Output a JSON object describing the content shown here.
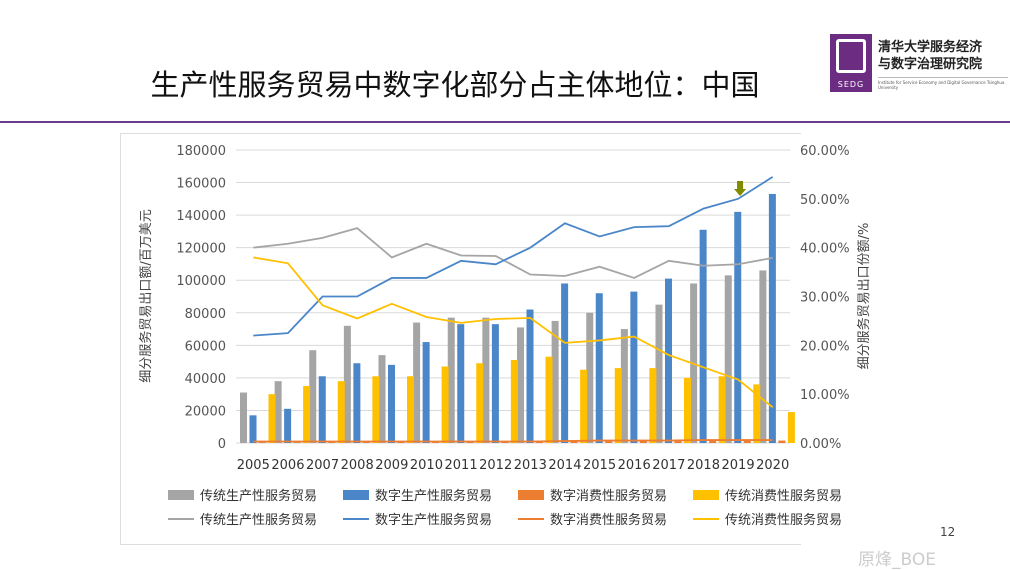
{
  "slide": {
    "title": "生产性服务贸易中数字化部分占主体地位：中国",
    "page": "12",
    "watermark": "原烽_BOE"
  },
  "logo": {
    "text": "SEDG",
    "org_line1": "清华大学服务经济",
    "org_line2": "与数字治理研究院",
    "org_en": "Institute for Service Economy and Digital Governance Tsinghua University"
  },
  "chart_data": {
    "type": "bar+line",
    "categories": [
      "2005",
      "2006",
      "2007",
      "2008",
      "2009",
      "2010",
      "2011",
      "2012",
      "2013",
      "2014",
      "2015",
      "2016",
      "2017",
      "2018",
      "2019",
      "2020"
    ],
    "ylabel": "细分服务贸易出口额/百万美元",
    "y2label": "细分服务贸易出口份额/%",
    "ylim": [
      0,
      180000
    ],
    "y2lim": [
      0,
      60
    ],
    "yticks": [
      "0",
      "20000",
      "40000",
      "60000",
      "80000",
      "100000",
      "120000",
      "140000",
      "160000",
      "180000"
    ],
    "y2ticks": [
      "0.00%",
      "10.00%",
      "20.00%",
      "30.00%",
      "40.00%",
      "50.00%",
      "60.00%"
    ],
    "bar_series": [
      {
        "name": "传统生产性服务贸易",
        "color": "#a5a5a5",
        "values": [
          31000,
          38000,
          57000,
          72000,
          54000,
          74000,
          77000,
          77000,
          71000,
          75000,
          80000,
          70000,
          85000,
          98000,
          103000,
          106000
        ]
      },
      {
        "name": "数字生产性服务贸易",
        "color": "#4a86c8",
        "values": [
          17000,
          21000,
          41000,
          49000,
          48000,
          62000,
          73000,
          73000,
          82000,
          98000,
          92000,
          93000,
          101000,
          131000,
          142000,
          153000
        ]
      },
      {
        "name": "数字消费性服务贸易",
        "color": "#ed7d31",
        "values": [
          500,
          500,
          600,
          700,
          700,
          800,
          800,
          800,
          900,
          1000,
          1100,
          1100,
          1200,
          1400,
          1500,
          1500
        ]
      },
      {
        "name": "传统消费性服务贸易",
        "color": "#ffc000",
        "values": [
          30000,
          35000,
          38000,
          41000,
          41000,
          47000,
          49000,
          51000,
          53000,
          45000,
          46000,
          46000,
          40000,
          41000,
          36000,
          19000
        ]
      }
    ],
    "line_series": [
      {
        "name": "传统生产性服务贸易",
        "color": "#a5a5a5",
        "values": [
          40,
          40.8,
          42,
          44,
          38,
          40.8,
          38.4,
          38.3,
          34.5,
          34.2,
          36.1,
          33.8,
          37.3,
          36.3,
          36.6,
          37.9
        ]
      },
      {
        "name": "数字生产性服务贸易",
        "color": "#4a86c8",
        "values": [
          22,
          22.5,
          30,
          30,
          33.8,
          33.8,
          37.3,
          36.6,
          40,
          45,
          42.3,
          44.2,
          44.4,
          48,
          50,
          54.5
        ]
      },
      {
        "name": "数字消费性服务贸易",
        "color": "#ed7d31",
        "values": [
          0.3,
          0.3,
          0.3,
          0.3,
          0.3,
          0.3,
          0.3,
          0.3,
          0.3,
          0.4,
          0.5,
          0.5,
          0.5,
          0.6,
          0.6,
          0.6
        ]
      },
      {
        "name": "传统消费性服务贸易",
        "color": "#ffc000",
        "values": [
          38,
          36.8,
          28.2,
          25.5,
          28.5,
          25.8,
          24.6,
          25.4,
          25.6,
          20.5,
          21,
          21.8,
          18,
          15.5,
          13,
          7.3
        ]
      }
    ],
    "annotation": {
      "type": "arrow",
      "category": "2019",
      "color": "#7f8c00"
    },
    "legend": "bottom"
  }
}
